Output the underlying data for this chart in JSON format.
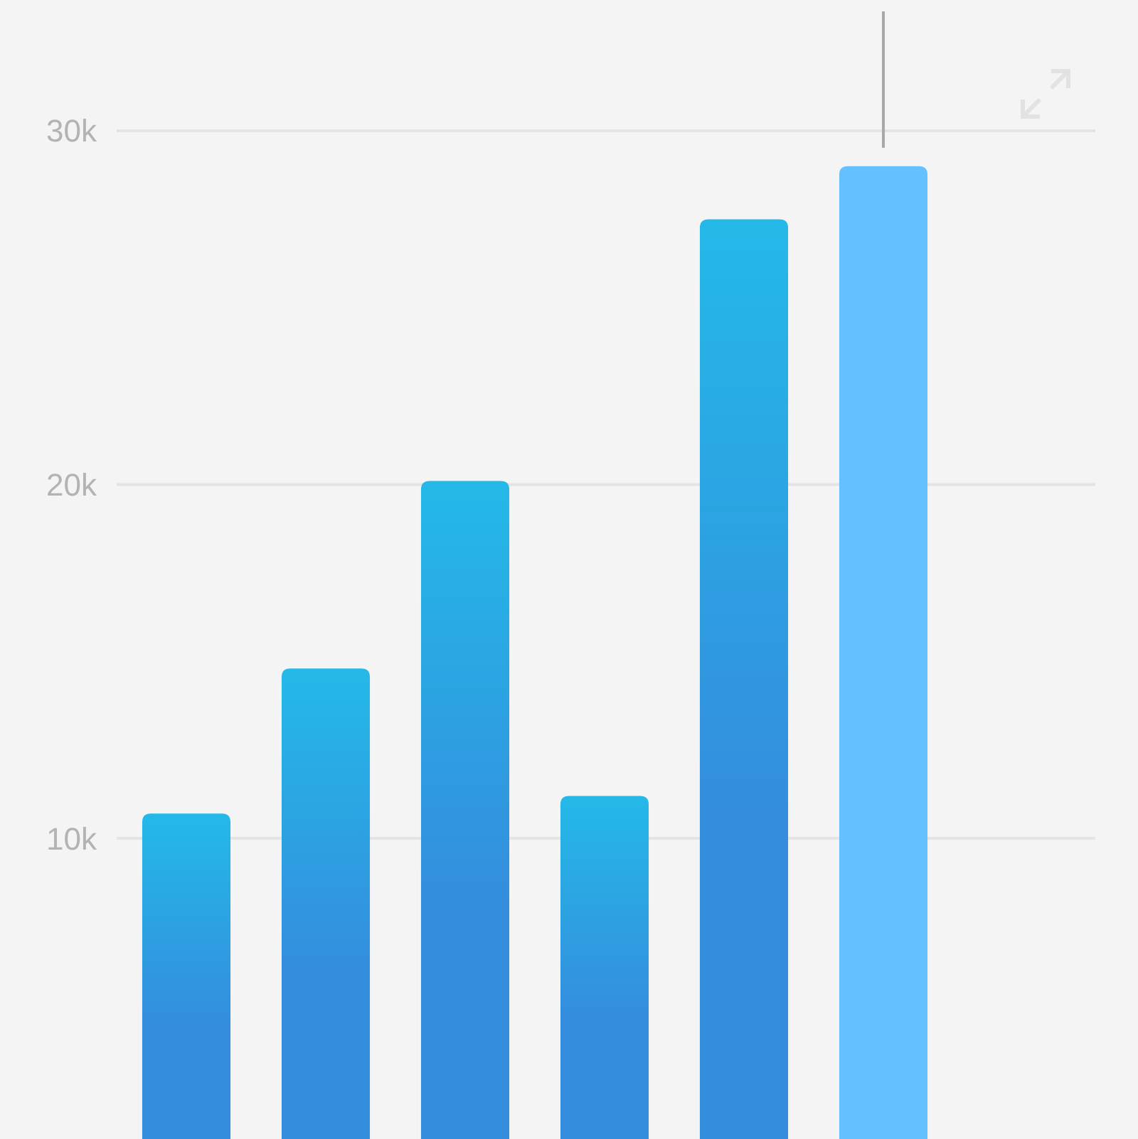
{
  "chart_data": {
    "type": "bar",
    "categories": [
      null,
      null,
      null,
      null,
      null,
      null,
      null
    ],
    "values": [
      10700,
      14800,
      20100,
      11200,
      27500,
      29000,
      null
    ],
    "colors": [
      "#348ddd",
      "#348ddd",
      "#348ddd",
      "#348ddd",
      "#348ddd",
      "#64c0ff",
      "#348ddd"
    ],
    "ylim": [
      1500,
      33700
    ],
    "yticks": [
      {
        "value": 10000,
        "label": "10k"
      },
      {
        "value": 20000,
        "label": "20k"
      },
      {
        "value": 30000,
        "label": "30k"
      }
    ],
    "grid": "y",
    "tick_labels": "y"
  }
}
